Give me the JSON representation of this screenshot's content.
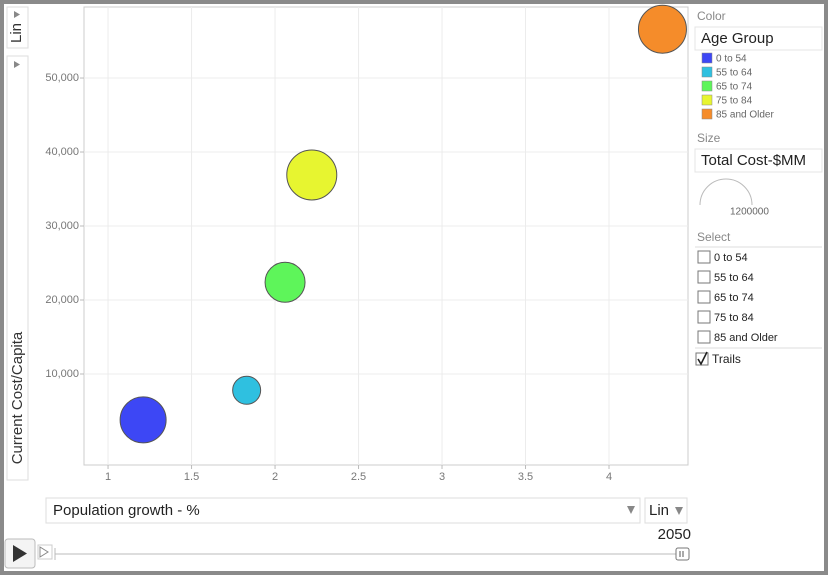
{
  "chart_data": {
    "type": "bubble",
    "y_scale": "Lin",
    "y_label": "Current Cost/Capita",
    "x_label": "Population growth - %",
    "x_scale": "Lin",
    "year": 2050,
    "color_label": "Color",
    "color_by": "Age Group",
    "size_label": "Size",
    "size_by": "Total Cost-$MM",
    "size_legend": 1200000,
    "select_label": "Select",
    "trails_label": "Trails",
    "trails": true,
    "xlim": [
      0.856,
      4.473
    ],
    "ylim": [
      -2300,
      59600
    ],
    "xticks": [
      1,
      1.5,
      2,
      2.5,
      3,
      3.5,
      4
    ],
    "yticks": [
      {
        "value": 10000,
        "label": "10,000"
      },
      {
        "value": 20000,
        "label": "20,000"
      },
      {
        "value": 30000,
        "label": "30,000"
      },
      {
        "value": 40000,
        "label": "40,000"
      },
      {
        "value": 50000,
        "label": "50,000"
      }
    ],
    "grid": true,
    "series": [
      {
        "name": "0 to 54",
        "color": "#3d47f5",
        "x": [
          1.21
        ],
        "values": [
          3800
        ],
        "sizes": [
          939000
        ]
      },
      {
        "name": "55 to 64",
        "color": "#2fc0e0",
        "x": [
          1.83
        ],
        "values": [
          7800
        ],
        "sizes": [
          348000
        ]
      },
      {
        "name": "65 to 74",
        "color": "#5ef55a",
        "x": [
          2.06
        ],
        "values": [
          22400
        ],
        "sizes": [
          710000
        ]
      },
      {
        "name": "75 to 84",
        "color": "#e7f530",
        "x": [
          2.22
        ],
        "values": [
          36900
        ],
        "sizes": [
          1109000
        ]
      },
      {
        "name": "85 and Older",
        "color": "#f58c2a",
        "x": [
          4.32
        ],
        "values": [
          56600
        ],
        "sizes": [
          1022000
        ]
      }
    ]
  }
}
